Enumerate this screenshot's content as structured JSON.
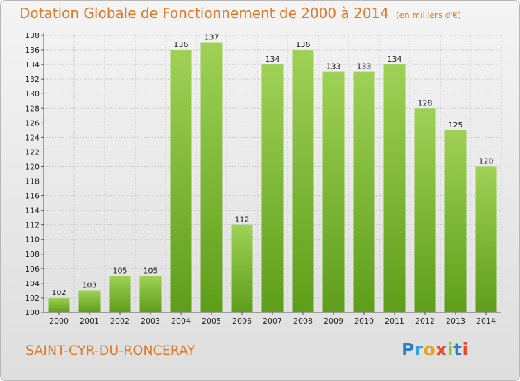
{
  "header": {
    "title": "Dotation Globale de Fonctionnement de 2000 à 2014",
    "unit": "(en milliers d'€)"
  },
  "footer": {
    "commune": "SAINT-CYR-DU-RONCERAY",
    "logo": {
      "p": "P",
      "r": "r",
      "o": "o",
      "x": "x",
      "i1": "i",
      "t": "t",
      "i2": "i"
    }
  },
  "colors": {
    "title": "#e07a2a",
    "bar_top": "#9fd156",
    "bar_bottom": "#5e9e1a",
    "grid": "#c8c8c8"
  },
  "chart_data": {
    "type": "bar",
    "title": "Dotation Globale de Fonctionnement de 2000 à 2014",
    "subtitle": "(en milliers d'€)",
    "xlabel": "",
    "ylabel": "",
    "categories": [
      "2000",
      "2001",
      "2002",
      "2003",
      "2004",
      "2005",
      "2006",
      "2007",
      "2008",
      "2009",
      "2010",
      "2011",
      "2012",
      "2013",
      "2014"
    ],
    "values": [
      102,
      103,
      105,
      105,
      136,
      137,
      112,
      134,
      136,
      133,
      133,
      134,
      128,
      125,
      120
    ],
    "ylim": [
      100,
      138
    ],
    "yticks": [
      100,
      102,
      104,
      106,
      108,
      110,
      112,
      114,
      116,
      118,
      120,
      122,
      124,
      126,
      128,
      130,
      132,
      134,
      136,
      138
    ],
    "grid": true,
    "legend": "none"
  }
}
